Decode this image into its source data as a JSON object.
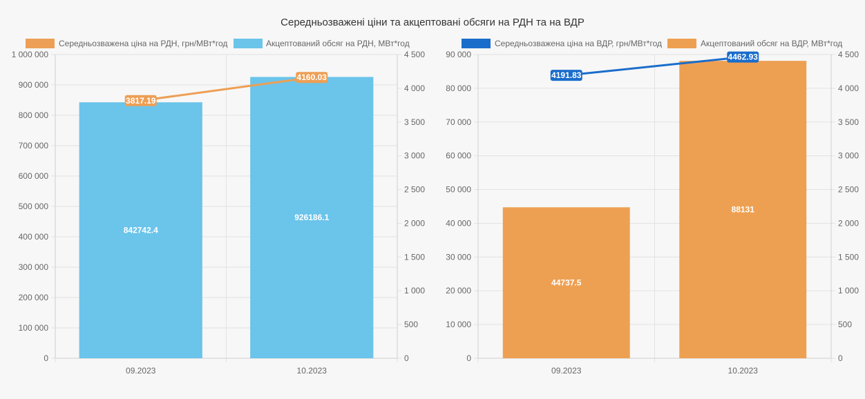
{
  "title": "Середньозважені ціни та акцептовані обсяги на РДН та на ВДР",
  "chart_data": [
    {
      "type": "bar",
      "categories": [
        "09.2023",
        "10.2023"
      ],
      "series": [
        {
          "name": "Середньозважена ціна на РДН, грн/МВт*год",
          "kind": "line",
          "axis": "right",
          "color": "#ed9f55",
          "values": [
            3817.19,
            4160.03
          ],
          "labels": [
            "3817.19",
            "4160.03"
          ]
        },
        {
          "name": "Акцептований обсяг на РДН, МВт*год",
          "kind": "bar",
          "axis": "left",
          "color": "#6bc4ea",
          "values": [
            842742.4,
            926186.1
          ],
          "labels": [
            "842742.4",
            "926186.1"
          ]
        }
      ],
      "y_left": {
        "min": 0,
        "max": 1000000,
        "step": 100000,
        "ticks": [
          "0",
          "100 000",
          "200 000",
          "300 000",
          "400 000",
          "500 000",
          "600 000",
          "700 000",
          "800 000",
          "900 000",
          "1 000 000"
        ]
      },
      "y_right": {
        "min": 0,
        "max": 4500,
        "step": 500,
        "ticks": [
          "0",
          "500",
          "1 000",
          "1 500",
          "2 000",
          "2 500",
          "3 000",
          "3 500",
          "4 000",
          "4 500"
        ]
      },
      "grid": true,
      "legend": "top"
    },
    {
      "type": "bar",
      "categories": [
        "09.2023",
        "10.2023"
      ],
      "series": [
        {
          "name": "Середньозважена ціна на ВДР, грн/МВт*год",
          "kind": "line",
          "axis": "right",
          "color": "#1a6dcb",
          "values": [
            4191.83,
            4462.93
          ],
          "labels": [
            "4191.83",
            "4462.93"
          ]
        },
        {
          "name": "Акцептований обсяг на ВДР, МВт*год",
          "kind": "bar",
          "axis": "left",
          "color": "#eea052",
          "values": [
            44737.5,
            88131
          ],
          "labels": [
            "44737.5",
            "88131"
          ]
        }
      ],
      "y_left": {
        "min": 0,
        "max": 90000,
        "step": 10000,
        "ticks": [
          "0",
          "10 000",
          "20 000",
          "30 000",
          "40 000",
          "50 000",
          "60 000",
          "70 000",
          "80 000",
          "90 000"
        ]
      },
      "y_right": {
        "min": 0,
        "max": 4500,
        "step": 500,
        "ticks": [
          "0",
          "500",
          "1 000",
          "1 500",
          "2 000",
          "2 500",
          "3 000",
          "3 500",
          "4 000",
          "4 500"
        ]
      },
      "grid": true,
      "legend": "top"
    }
  ]
}
